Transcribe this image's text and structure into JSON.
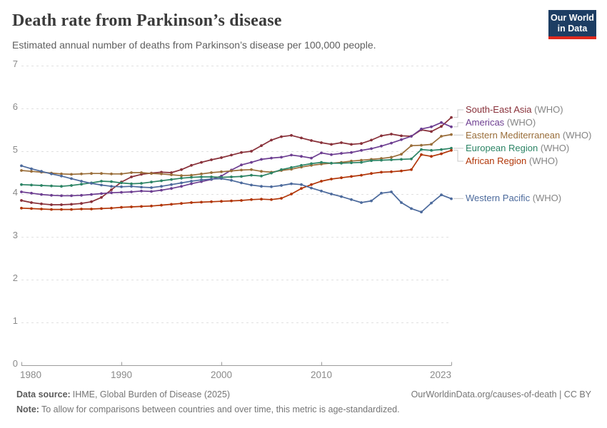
{
  "header": {
    "title": "Death rate from Parkinson’s disease",
    "subtitle": "Estimated annual number of deaths from Parkinson’s disease per 100,000 people.",
    "logo_line1": "Our World",
    "logo_line2": "in Data"
  },
  "footer": {
    "source_label": "Data source:",
    "source": "IHME, Global Burden of Disease (2025)",
    "link": "OurWorldinData.org/causes-of-death | CC BY",
    "note_label": "Note:",
    "note": "To allow for comparisons between countries and over time, this metric is age-standardized."
  },
  "logo_colors": {
    "background": "#1D3D63",
    "bar": "#E0291D"
  },
  "chart_data": {
    "type": "line",
    "title": "Death rate from Parkinson's disease",
    "xlabel": "",
    "ylabel": "",
    "xlim": [
      1980,
      2023
    ],
    "ylim": [
      0,
      7
    ],
    "grid": "horizontal-dashed",
    "legend_position": "right",
    "y_ticks": [
      0,
      1,
      2,
      3,
      4,
      5,
      6,
      7
    ],
    "x_ticks": [
      1980,
      1990,
      2000,
      2010,
      2023
    ],
    "x": [
      1980,
      1981,
      1982,
      1983,
      1984,
      1985,
      1986,
      1987,
      1988,
      1989,
      1990,
      1991,
      1992,
      1993,
      1994,
      1995,
      1996,
      1997,
      1998,
      1999,
      2000,
      2001,
      2002,
      2003,
      2004,
      2005,
      2006,
      2007,
      2008,
      2009,
      2010,
      2011,
      2012,
      2013,
      2014,
      2015,
      2016,
      2017,
      2018,
      2019,
      2020,
      2021,
      2022,
      2023
    ],
    "series": [
      {
        "name": "South-East Asia",
        "suffix": "(WHO)",
        "color": "#883039",
        "values": [
          3.85,
          3.8,
          3.77,
          3.75,
          3.75,
          3.76,
          3.78,
          3.82,
          3.92,
          4.1,
          4.28,
          4.4,
          4.46,
          4.49,
          4.51,
          4.5,
          4.57,
          4.67,
          4.74,
          4.8,
          4.85,
          4.91,
          4.97,
          5.0,
          5.13,
          5.26,
          5.34,
          5.37,
          5.31,
          5.25,
          5.2,
          5.16,
          5.2,
          5.16,
          5.18,
          5.26,
          5.36,
          5.4,
          5.36,
          5.35,
          5.5,
          5.46,
          5.58,
          5.79
        ]
      },
      {
        "name": "Americas",
        "suffix": "(WHO)",
        "color": "#6D3E91",
        "values": [
          4.05,
          4.02,
          3.99,
          3.97,
          3.96,
          3.96,
          3.97,
          3.99,
          4.01,
          4.03,
          4.04,
          4.05,
          4.07,
          4.06,
          4.09,
          4.13,
          4.18,
          4.24,
          4.29,
          4.34,
          4.42,
          4.56,
          4.68,
          4.74,
          4.81,
          4.84,
          4.86,
          4.91,
          4.88,
          4.84,
          4.96,
          4.92,
          4.95,
          4.97,
          5.02,
          5.06,
          5.12,
          5.19,
          5.27,
          5.35,
          5.52,
          5.57,
          5.67,
          5.57
        ]
      },
      {
        "name": "Eastern Mediterranean",
        "suffix": "(WHO)",
        "color": "#996D39",
        "values": [
          4.55,
          4.53,
          4.51,
          4.49,
          4.47,
          4.46,
          4.47,
          4.48,
          4.48,
          4.47,
          4.47,
          4.5,
          4.5,
          4.48,
          4.47,
          4.45,
          4.43,
          4.44,
          4.47,
          4.5,
          4.52,
          4.54,
          4.56,
          4.57,
          4.53,
          4.51,
          4.55,
          4.58,
          4.63,
          4.67,
          4.7,
          4.72,
          4.74,
          4.77,
          4.79,
          4.81,
          4.83,
          4.86,
          4.93,
          5.13,
          5.14,
          5.16,
          5.35,
          5.39
        ]
      },
      {
        "name": "European Region",
        "suffix": "(WHO)",
        "color": "#2C8465",
        "values": [
          4.22,
          4.21,
          4.2,
          4.19,
          4.18,
          4.2,
          4.23,
          4.26,
          4.3,
          4.29,
          4.26,
          4.24,
          4.25,
          4.28,
          4.31,
          4.34,
          4.37,
          4.39,
          4.4,
          4.4,
          4.39,
          4.4,
          4.41,
          4.44,
          4.42,
          4.49,
          4.57,
          4.62,
          4.67,
          4.71,
          4.74,
          4.72,
          4.72,
          4.73,
          4.74,
          4.78,
          4.79,
          4.8,
          4.81,
          4.82,
          5.04,
          5.02,
          5.04,
          5.07
        ]
      },
      {
        "name": "African Region",
        "suffix": "(WHO)",
        "color": "#B13507",
        "values": [
          3.67,
          3.66,
          3.65,
          3.64,
          3.64,
          3.64,
          3.65,
          3.65,
          3.66,
          3.67,
          3.69,
          3.7,
          3.71,
          3.72,
          3.74,
          3.76,
          3.78,
          3.8,
          3.81,
          3.82,
          3.83,
          3.84,
          3.85,
          3.87,
          3.88,
          3.87,
          3.9,
          4.0,
          4.13,
          4.22,
          4.3,
          4.35,
          4.38,
          4.41,
          4.44,
          4.48,
          4.51,
          4.52,
          4.54,
          4.57,
          4.92,
          4.88,
          4.94,
          5.02
        ]
      },
      {
        "name": "Western Pacific",
        "suffix": "(WHO)",
        "color": "#4C6A9C",
        "values": [
          4.66,
          4.59,
          4.53,
          4.47,
          4.42,
          4.36,
          4.3,
          4.25,
          4.21,
          4.18,
          4.17,
          4.18,
          4.16,
          4.15,
          4.18,
          4.22,
          4.26,
          4.3,
          4.33,
          4.35,
          4.36,
          4.32,
          4.26,
          4.21,
          4.18,
          4.17,
          4.2,
          4.24,
          4.22,
          4.14,
          4.07,
          4.0,
          3.94,
          3.87,
          3.8,
          3.84,
          4.02,
          4.05,
          3.8,
          3.66,
          3.58,
          3.79,
          3.98,
          3.89
        ]
      }
    ]
  }
}
